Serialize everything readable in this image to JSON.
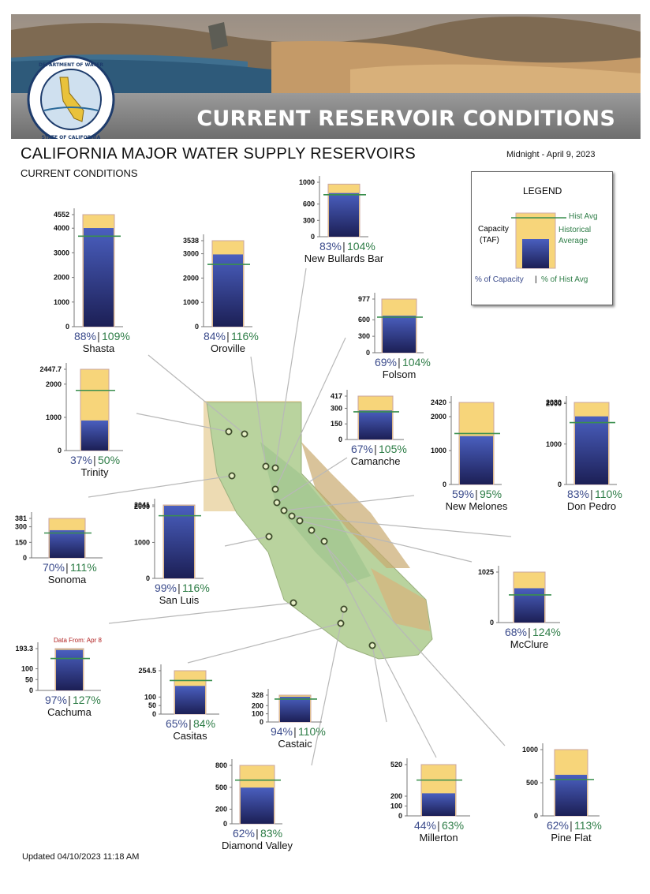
{
  "header": {
    "banner_title": "CURRENT RESERVOIR CONDITIONS",
    "seal_top_text": "DEPARTMENT OF WATER RESOURCES",
    "seal_bottom_text": "STATE OF CALIFORNIA",
    "title": "CALIFORNIA MAJOR WATER SUPPLY RESERVOIRS",
    "subtitle": "CURRENT CONDITIONS",
    "as_of": "Midnight - April 9, 2023"
  },
  "legend": {
    "title": "LEGEND",
    "hist_avg_label": "Hist Avg",
    "capacity_label_1": "Capacity",
    "capacity_label_2": "(TAF)",
    "historical_label_1": "Historical",
    "historical_label_2": "Average",
    "footer_pct_capacity": "% of Capacity",
    "footer_sep": "|",
    "footer_pct_hist": "% of Hist Avg"
  },
  "footer": {
    "updated": "Updated 04/10/2023 11:18 AM"
  },
  "colors": {
    "capacity_fill": "#f7d57a",
    "storage_top": "#4a5fbf",
    "storage_bottom": "#1c1f55",
    "hist_line": "#3a8f4e",
    "pct_capacity_text": "#3c4c8c",
    "pct_hist_text": "#2e7d47",
    "note_text": "#b02020"
  },
  "chart_data": [
    {
      "type": "bar",
      "name": "Shasta",
      "capacity": 4552,
      "storage": 4006,
      "hist_avg": 3675,
      "pct_capacity": "88%",
      "pct_hist": "109%",
      "ticks": [
        "4552",
        "4000",
        "3000",
        "2000",
        "1000",
        "0"
      ]
    },
    {
      "type": "bar",
      "name": "Oroville",
      "capacity": 3538,
      "storage": 2972,
      "hist_avg": 2562,
      "pct_capacity": "84%",
      "pct_hist": "116%",
      "ticks": [
        "3538",
        "3000",
        "2000",
        "1000",
        "0"
      ]
    },
    {
      "type": "bar",
      "name": "New Bullards Bar",
      "capacity": 966,
      "storage": 802,
      "hist_avg": 771,
      "pct_capacity": "83%",
      "pct_hist": "104%",
      "ticks": [
        "1000",
        "600",
        "300",
        "0"
      ]
    },
    {
      "type": "bar",
      "name": "Folsom",
      "capacity": 977,
      "storage": 674,
      "hist_avg": 648,
      "pct_capacity": "69%",
      "pct_hist": "104%",
      "ticks": [
        "977",
        "600",
        "300",
        "0"
      ]
    },
    {
      "type": "bar",
      "name": "Trinity",
      "capacity": 2447.7,
      "storage": 906,
      "hist_avg": 1812,
      "pct_capacity": "37%",
      "pct_hist": "50%",
      "ticks": [
        "2447.7",
        "2000",
        "1000",
        "0"
      ]
    },
    {
      "type": "bar",
      "name": "Camanche",
      "capacity": 417,
      "storage": 279,
      "hist_avg": 266,
      "pct_capacity": "67%",
      "pct_hist": "105%",
      "ticks": [
        "417",
        "300",
        "150",
        "0"
      ]
    },
    {
      "type": "bar",
      "name": "New Melones",
      "capacity": 2420,
      "storage": 1428,
      "hist_avg": 1503,
      "pct_capacity": "59%",
      "pct_hist": "95%",
      "ticks": [
        "2420",
        "2000",
        "1000",
        "0"
      ]
    },
    {
      "type": "bar",
      "name": "Don Pedro",
      "capacity": 2030,
      "storage": 1685,
      "hist_avg": 1532,
      "pct_capacity": "83%",
      "pct_hist": "110%",
      "ticks": [
        "2030",
        "2000",
        "1000",
        "0"
      ]
    },
    {
      "type": "bar",
      "name": "Sonoma",
      "capacity": 381,
      "storage": 267,
      "hist_avg": 240,
      "pct_capacity": "70%",
      "pct_hist": "111%",
      "ticks": [
        "381",
        "300",
        "150",
        "0"
      ]
    },
    {
      "type": "bar",
      "name": "San Luis",
      "capacity": 2041,
      "storage": 2021,
      "hist_avg": 1742,
      "pct_capacity": "99%",
      "pct_hist": "116%",
      "ticks": [
        "2041",
        "2000",
        "1000",
        "0"
      ]
    },
    {
      "type": "bar",
      "name": "McClure",
      "capacity": 1025,
      "storage": 697,
      "hist_avg": 562,
      "pct_capacity": "68%",
      "pct_hist": "124%",
      "ticks": [
        "1025",
        "0"
      ]
    },
    {
      "type": "bar",
      "name": "Cachuma",
      "capacity": 193.3,
      "storage": 187.5,
      "hist_avg": 147.6,
      "pct_capacity": "97%",
      "pct_hist": "127%",
      "note": "Data From: Apr 8",
      "ticks": [
        "193.3",
        "100",
        "50",
        "0"
      ]
    },
    {
      "type": "bar",
      "name": "Casitas",
      "capacity": 254.5,
      "storage": 165.4,
      "hist_avg": 196.9,
      "pct_capacity": "65%",
      "pct_hist": "84%",
      "ticks": [
        "254.5",
        "100",
        "50",
        "0"
      ]
    },
    {
      "type": "bar",
      "name": "Castaic",
      "capacity": 328,
      "storage": 308.3,
      "hist_avg": 280.3,
      "pct_capacity": "94%",
      "pct_hist": "110%",
      "ticks": [
        "328",
        "200",
        "100",
        "0"
      ]
    },
    {
      "type": "bar",
      "name": "Diamond Valley",
      "capacity": 800,
      "storage": 496,
      "hist_avg": 598,
      "pct_capacity": "62%",
      "pct_hist": "83%",
      "ticks": [
        "800",
        "500",
        "200",
        "0"
      ]
    },
    {
      "type": "bar",
      "name": "Millerton",
      "capacity": 520,
      "storage": 229,
      "hist_avg": 363,
      "pct_capacity": "44%",
      "pct_hist": "63%",
      "ticks": [
        "520",
        "200",
        "100",
        "0"
      ]
    },
    {
      "type": "bar",
      "name": "Pine Flat",
      "capacity": 1000,
      "storage": 620,
      "hist_avg": 549,
      "pct_capacity": "62%",
      "pct_hist": "113%",
      "ticks": [
        "1000",
        "500",
        "0"
      ]
    }
  ]
}
